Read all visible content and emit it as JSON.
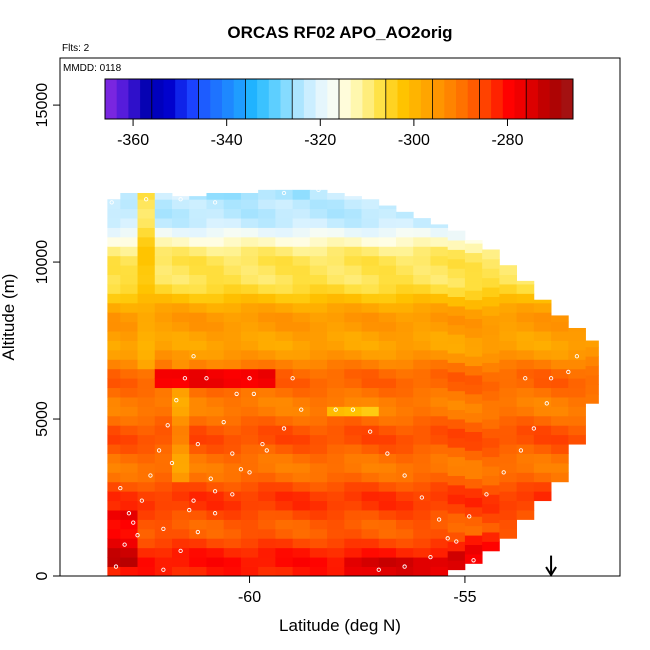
{
  "chart_data": {
    "type": "heatmap",
    "title": "ORCAS RF02 APO_AO2orig",
    "annotations": [
      "Flts: 2",
      "MMDD: 0118"
    ],
    "xlabel": "Latitude (deg N)",
    "ylabel": "Altitude (m)",
    "xlim": [
      -64.4,
      -51.4
    ],
    "ylim": [
      0,
      16500
    ],
    "x_ticks": [
      -60,
      -55
    ],
    "y_ticks": [
      0,
      5000,
      10000,
      15000
    ],
    "x_tick_labels": [
      "-60",
      "-55"
    ],
    "y_tick_labels": [
      "0",
      "5000",
      "10000",
      "15000"
    ],
    "colorbar": {
      "min": -366,
      "max": -266,
      "ticks": [
        -360,
        -340,
        -320,
        -300,
        -280
      ],
      "tick_labels": [
        "-360",
        "-340",
        "-320",
        "-300",
        "-280"
      ],
      "colors": [
        "#8a2be2",
        "#4b19d9",
        "#0000b0",
        "#0000cc",
        "#1a3cff",
        "#1e6bff",
        "#1e90ff",
        "#20b8ff",
        "#5fd0ff",
        "#a8e4ff",
        "#e0f4ff",
        "#fffff0",
        "#fff5a0",
        "#ffe040",
        "#ffc400",
        "#ffa800",
        "#ff8c00",
        "#ff6a00",
        "#ff3c00",
        "#ff0000",
        "#e00000",
        "#b00000",
        "#a01818"
      ]
    },
    "field": {
      "lat_edges": [
        -63.3,
        -63.0,
        -62.6,
        -62.2,
        -61.8,
        -61.4,
        -61.0,
        -60.6,
        -60.2,
        -59.8,
        -59.4,
        -59.0,
        -58.6,
        -58.2,
        -57.8,
        -57.4,
        -57.0,
        -56.6,
        -56.2,
        -55.8,
        -55.4,
        -55.0,
        -54.6,
        -54.2,
        -53.8,
        -53.4,
        -53.0,
        -52.6,
        -52.2,
        -51.9
      ],
      "top_altitude_m": [
        12000,
        12200,
        12200,
        12200,
        12100,
        12100,
        12200,
        12200,
        12200,
        12300,
        12300,
        12300,
        12300,
        12200,
        12100,
        12000,
        11800,
        11600,
        11400,
        11200,
        11000,
        10700,
        10400,
        9900,
        9400,
        8800,
        8300,
        7900,
        7500
      ],
      "bottom_altitude_m": [
        0,
        0,
        0,
        0,
        0,
        0,
        0,
        0,
        0,
        0,
        0,
        0,
        0,
        0,
        0,
        0,
        0,
        0,
        0,
        0,
        200,
        400,
        800,
        1200,
        1800,
        2400,
        3000,
        4200,
        5500
      ],
      "layers": [
        {
          "alt_m": 11800,
          "value": -325
        },
        {
          "alt_m": 11000,
          "value": -317
        },
        {
          "alt_m": 10000,
          "value": -310
        },
        {
          "alt_m": 9000,
          "value": -302
        },
        {
          "alt_m": 8000,
          "value": -297
        },
        {
          "alt_m": 7000,
          "value": -293
        },
        {
          "alt_m": 6000,
          "value": -290
        },
        {
          "alt_m": 5000,
          "value": -288
        },
        {
          "alt_m": 4000,
          "value": -289
        },
        {
          "alt_m": 3000,
          "value": -287
        },
        {
          "alt_m": 2000,
          "value": -286
        },
        {
          "alt_m": 1000,
          "value": -284
        },
        {
          "alt_m": 0,
          "value": -283
        }
      ],
      "features": [
        {
          "lat": -62.3,
          "alt_m": 9500,
          "value": -300,
          "lat_width": 0.4,
          "alt_height": 6000
        },
        {
          "lat": -61.7,
          "alt_m": 5000,
          "value": -298,
          "lat_width": 0.4,
          "alt_height": 4000
        },
        {
          "lat": -60.8,
          "alt_m": 6300,
          "value": -275,
          "lat_width": 3.0,
          "alt_height": 400
        },
        {
          "lat": -57.5,
          "alt_m": 5300,
          "value": -305,
          "lat_width": 1.4,
          "alt_height": 300
        },
        {
          "lat": -63.0,
          "alt_m": 1200,
          "value": -272,
          "lat_width": 0.6,
          "alt_height": 1800
        },
        {
          "lat": -56.5,
          "alt_m": 400,
          "value": -274,
          "lat_width": 2.8,
          "alt_height": 500
        },
        {
          "lat": -54.2,
          "alt_m": 1000,
          "value": -276,
          "lat_width": 1.6,
          "alt_height": 600
        },
        {
          "lat": -60.0,
          "alt_m": 12150,
          "value": -330,
          "lat_width": 3.0,
          "alt_height": 300
        }
      ]
    },
    "flight_track": {
      "color": "#ffffff",
      "points": [
        [
          -63.1,
          300
        ],
        [
          -62.9,
          1000
        ],
        [
          -62.7,
          1700
        ],
        [
          -62.5,
          2400
        ],
        [
          -62.3,
          3200
        ],
        [
          -62.1,
          4000
        ],
        [
          -61.9,
          4800
        ],
        [
          -61.7,
          5600
        ],
        [
          -61.5,
          6300
        ],
        [
          -61.3,
          7000
        ],
        [
          -63.2,
          11900
        ],
        [
          -62.4,
          12000
        ],
        [
          -61.6,
          12000
        ],
        [
          -60.8,
          11900
        ],
        [
          -59.2,
          12200
        ],
        [
          -58.4,
          12300
        ],
        [
          -57.6,
          12300
        ],
        [
          -62.0,
          200
        ],
        [
          -61.6,
          800
        ],
        [
          -61.2,
          1400
        ],
        [
          -60.8,
          2000
        ],
        [
          -60.4,
          2600
        ],
        [
          -60.0,
          3300
        ],
        [
          -59.6,
          4000
        ],
        [
          -59.2,
          4700
        ],
        [
          -58.8,
          5300
        ],
        [
          -58.0,
          5300
        ],
        [
          -57.6,
          5300
        ],
        [
          -57.2,
          4600
        ],
        [
          -56.8,
          3900
        ],
        [
          -56.4,
          3200
        ],
        [
          -56.0,
          2500
        ],
        [
          -55.6,
          1800
        ],
        [
          -55.2,
          1100
        ],
        [
          -54.8,
          500
        ],
        [
          -57.0,
          200
        ],
        [
          -56.4,
          300
        ],
        [
          -55.8,
          600
        ],
        [
          -55.4,
          1200
        ],
        [
          -54.9,
          1900
        ],
        [
          -54.5,
          2600
        ],
        [
          -54.1,
          3300
        ],
        [
          -53.7,
          4000
        ],
        [
          -53.4,
          4700
        ],
        [
          -53.1,
          5500
        ],
        [
          -53.6,
          6300
        ],
        [
          -53.0,
          6300
        ],
        [
          -52.6,
          6500
        ],
        [
          -52.4,
          7000
        ],
        [
          -60.3,
          5800
        ],
        [
          -59.9,
          5800
        ],
        [
          -61.0,
          6300
        ],
        [
          -60.0,
          6300
        ],
        [
          -59.0,
          6300
        ],
        [
          -63.0,
          2800
        ],
        [
          -62.8,
          2000
        ],
        [
          -62.6,
          1300
        ],
        [
          -62.0,
          1500
        ],
        [
          -61.4,
          2100
        ],
        [
          -60.8,
          2700
        ],
        [
          -60.2,
          3400
        ],
        [
          -59.7,
          4200
        ],
        [
          -61.8,
          3600
        ],
        [
          -61.2,
          4200
        ],
        [
          -60.6,
          4900
        ],
        [
          -60.4,
          3900
        ],
        [
          -60.9,
          3100
        ],
        [
          -61.3,
          2400
        ]
      ]
    },
    "arrow": {
      "lat": -53.0,
      "alt_top_m": 650,
      "alt_bottom_m": 0
    }
  }
}
